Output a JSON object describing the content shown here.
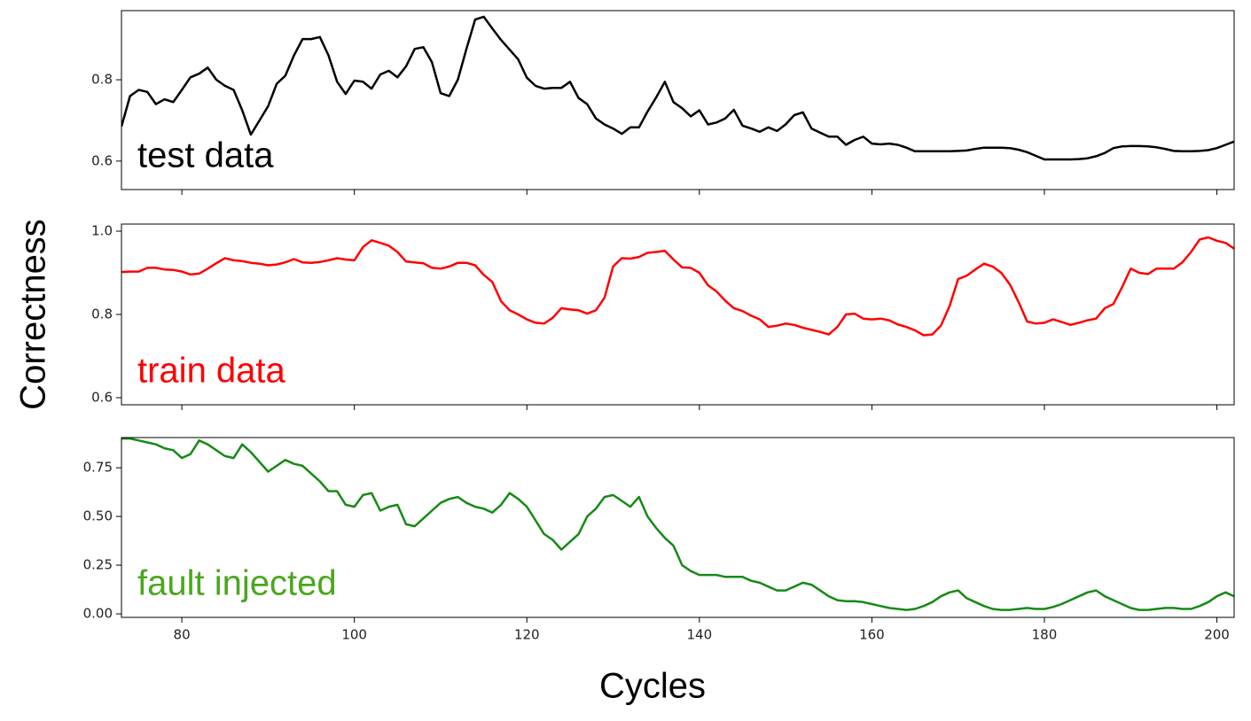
{
  "chart_data": {
    "type": "line",
    "xlabel": "Cycles",
    "ylabel": "Correctness",
    "xlim": [
      73,
      202
    ],
    "xticks": [
      80,
      100,
      120,
      140,
      160,
      180,
      200
    ],
    "x": [
      73,
      74,
      75,
      76,
      77,
      78,
      79,
      80,
      81,
      82,
      83,
      84,
      85,
      86,
      87,
      88,
      89,
      90,
      91,
      92,
      93,
      94,
      95,
      96,
      97,
      98,
      99,
      100,
      101,
      102,
      103,
      104,
      105,
      106,
      107,
      108,
      109,
      110,
      111,
      112,
      113,
      114,
      115,
      116,
      117,
      118,
      119,
      120,
      121,
      122,
      123,
      124,
      125,
      126,
      127,
      128,
      129,
      130,
      131,
      132,
      133,
      134,
      135,
      136,
      137,
      138,
      139,
      140,
      141,
      142,
      143,
      144,
      145,
      146,
      147,
      148,
      149,
      150,
      151,
      152,
      153,
      154,
      155,
      156,
      157,
      158,
      159,
      160,
      161,
      162,
      163,
      164,
      165,
      166,
      167,
      168,
      169,
      170,
      171,
      172,
      173,
      174,
      175,
      176,
      177,
      178,
      179,
      180,
      181,
      182,
      183,
      184,
      185,
      186,
      187,
      188,
      189,
      190,
      191,
      192,
      193,
      194,
      195,
      196,
      197,
      198,
      199,
      200,
      201,
      202
    ],
    "panels": [
      {
        "name": "test data",
        "color": "#000000",
        "label_color": "#000000",
        "ylim": [
          0.53,
          0.97
        ],
        "yticks": [
          0.6,
          0.8
        ],
        "values": [
          0.685,
          0.76,
          0.775,
          0.77,
          0.74,
          0.752,
          0.745,
          0.775,
          0.806,
          0.815,
          0.83,
          0.8,
          0.785,
          0.775,
          0.725,
          0.665,
          0.7,
          0.735,
          0.79,
          0.81,
          0.86,
          0.9,
          0.9,
          0.905,
          0.86,
          0.795,
          0.765,
          0.798,
          0.795,
          0.778,
          0.813,
          0.822,
          0.806,
          0.833,
          0.876,
          0.88,
          0.843,
          0.767,
          0.76,
          0.8,
          0.876,
          0.948,
          0.955,
          0.926,
          0.898,
          0.874,
          0.85,
          0.805,
          0.785,
          0.778,
          0.78,
          0.78,
          0.795,
          0.755,
          0.74,
          0.705,
          0.69,
          0.68,
          0.667,
          0.683,
          0.683,
          0.722,
          0.757,
          0.795,
          0.745,
          0.73,
          0.71,
          0.725,
          0.69,
          0.695,
          0.705,
          0.726,
          0.687,
          0.68,
          0.672,
          0.683,
          0.674,
          0.69,
          0.713,
          0.72,
          0.68,
          0.67,
          0.66,
          0.66,
          0.64,
          0.652,
          0.66,
          0.643,
          0.641,
          0.643,
          0.64,
          0.633,
          0.624,
          0.624,
          0.624,
          0.624,
          0.624,
          0.625,
          0.626,
          0.63,
          0.633,
          0.633,
          0.633,
          0.632,
          0.628,
          0.622,
          0.613,
          0.604,
          0.604,
          0.604,
          0.604,
          0.605,
          0.607,
          0.612,
          0.62,
          0.632,
          0.636,
          0.637,
          0.637,
          0.636,
          0.634,
          0.63,
          0.625,
          0.624,
          0.624,
          0.625,
          0.627,
          0.632,
          0.64,
          0.648
        ]
      },
      {
        "name": "train data",
        "color": "#ff0000",
        "label_color": "#ff0000",
        "ylim": [
          0.583,
          1.017
        ],
        "yticks": [
          0.6,
          0.8,
          {
            "value": 1,
            "label": "1.0"
          }
        ],
        "values": [
          0.902,
          0.903,
          0.903,
          0.912,
          0.912,
          0.908,
          0.907,
          0.903,
          0.896,
          0.898,
          0.91,
          0.923,
          0.935,
          0.93,
          0.928,
          0.924,
          0.922,
          0.918,
          0.92,
          0.925,
          0.933,
          0.925,
          0.924,
          0.926,
          0.93,
          0.935,
          0.932,
          0.93,
          0.962,
          0.978,
          0.972,
          0.965,
          0.95,
          0.927,
          0.925,
          0.923,
          0.912,
          0.91,
          0.915,
          0.924,
          0.924,
          0.918,
          0.895,
          0.878,
          0.832,
          0.81,
          0.8,
          0.788,
          0.78,
          0.778,
          0.792,
          0.815,
          0.812,
          0.81,
          0.802,
          0.81,
          0.84,
          0.915,
          0.935,
          0.934,
          0.938,
          0.948,
          0.95,
          0.953,
          0.932,
          0.913,
          0.912,
          0.9,
          0.87,
          0.855,
          0.833,
          0.815,
          0.808,
          0.797,
          0.788,
          0.77,
          0.773,
          0.778,
          0.775,
          0.768,
          0.763,
          0.758,
          0.752,
          0.77,
          0.8,
          0.802,
          0.79,
          0.788,
          0.79,
          0.786,
          0.776,
          0.77,
          0.762,
          0.75,
          0.752,
          0.773,
          0.82,
          0.885,
          0.893,
          0.908,
          0.922,
          0.915,
          0.9,
          0.872,
          0.83,
          0.783,
          0.778,
          0.78,
          0.788,
          0.782,
          0.775,
          0.78,
          0.786,
          0.79,
          0.815,
          0.825,
          0.865,
          0.91,
          0.9,
          0.897,
          0.91,
          0.91,
          0.91,
          0.925,
          0.95,
          0.98,
          0.985,
          0.977,
          0.972,
          0.958
        ]
      },
      {
        "name": "fault injected",
        "color": "#168a16",
        "label_color": "#4ba61f",
        "ylim": [
          -0.018,
          0.905
        ],
        "yticks": [
          {
            "value": 0,
            "label": "0.00"
          },
          {
            "value": 0.25,
            "label": "0.25"
          },
          {
            "value": 0.5,
            "label": "0.50"
          },
          {
            "value": 0.75,
            "label": "0.75"
          }
        ],
        "values": [
          0.9,
          0.9,
          0.89,
          0.88,
          0.87,
          0.85,
          0.84,
          0.8,
          0.82,
          0.89,
          0.87,
          0.84,
          0.81,
          0.8,
          0.87,
          0.83,
          0.78,
          0.73,
          0.76,
          0.79,
          0.77,
          0.76,
          0.72,
          0.68,
          0.63,
          0.63,
          0.56,
          0.55,
          0.61,
          0.62,
          0.53,
          0.55,
          0.56,
          0.46,
          0.45,
          0.49,
          0.53,
          0.57,
          0.59,
          0.6,
          0.57,
          0.55,
          0.54,
          0.52,
          0.56,
          0.62,
          0.59,
          0.55,
          0.48,
          0.41,
          0.38,
          0.33,
          0.37,
          0.41,
          0.5,
          0.54,
          0.6,
          0.61,
          0.58,
          0.55,
          0.6,
          0.5,
          0.44,
          0.39,
          0.35,
          0.25,
          0.22,
          0.2,
          0.2,
          0.2,
          0.19,
          0.19,
          0.19,
          0.17,
          0.16,
          0.14,
          0.12,
          0.12,
          0.14,
          0.16,
          0.15,
          0.12,
          0.09,
          0.07,
          0.065,
          0.065,
          0.06,
          0.05,
          0.04,
          0.03,
          0.025,
          0.02,
          0.025,
          0.04,
          0.06,
          0.09,
          0.11,
          0.12,
          0.08,
          0.06,
          0.04,
          0.025,
          0.02,
          0.02,
          0.025,
          0.03,
          0.025,
          0.025,
          0.035,
          0.05,
          0.07,
          0.09,
          0.11,
          0.12,
          0.09,
          0.07,
          0.05,
          0.03,
          0.02,
          0.02,
          0.025,
          0.03,
          0.03,
          0.025,
          0.025,
          0.04,
          0.06,
          0.09,
          0.11,
          0.09
        ]
      }
    ]
  }
}
